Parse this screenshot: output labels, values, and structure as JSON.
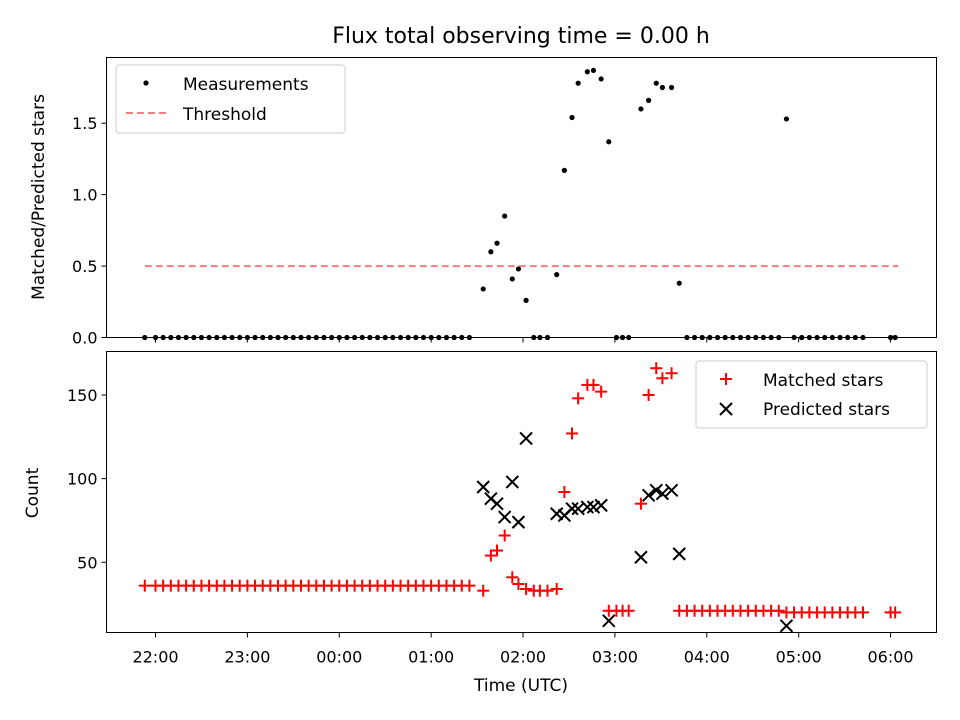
{
  "chart_data": [
    {
      "type": "scatter",
      "title": "Flux total observing time = 0.00 h",
      "xlabel": "",
      "ylabel": "Matched/Predicted stars",
      "ylim": [
        0,
        1.96
      ],
      "yticks": [
        0.0,
        0.5,
        1.0,
        1.5
      ],
      "ytick_labels": [
        "0.0",
        "0.5",
        "1.0",
        "1.5"
      ],
      "legend_position": "upper-left",
      "threshold": {
        "name": "Threshold",
        "value": 0.5,
        "x_range": [
          "21:53",
          "22:05+8h"
        ],
        "color": "#f08080"
      },
      "series": [
        {
          "name": "Measurements",
          "color": "#000000",
          "marker": "dot",
          "points": [
            [
              "21:53",
              0
            ],
            [
              "22:00",
              0
            ],
            [
              "22:05",
              0
            ],
            [
              "22:10",
              0
            ],
            [
              "22:15",
              0
            ],
            [
              "22:20",
              0
            ],
            [
              "22:25",
              0
            ],
            [
              "22:30",
              0
            ],
            [
              "22:35",
              0
            ],
            [
              "22:40",
              0
            ],
            [
              "22:45",
              0
            ],
            [
              "22:50",
              0
            ],
            [
              "22:55",
              0
            ],
            [
              "23:00",
              0
            ],
            [
              "23:05",
              0
            ],
            [
              "23:10",
              0
            ],
            [
              "23:15",
              0
            ],
            [
              "23:20",
              0
            ],
            [
              "23:25",
              0
            ],
            [
              "23:30",
              0
            ],
            [
              "23:35",
              0
            ],
            [
              "23:40",
              0
            ],
            [
              "23:45",
              0
            ],
            [
              "23:50",
              0
            ],
            [
              "23:55",
              0
            ],
            [
              "00:00",
              0
            ],
            [
              "00:05",
              0
            ],
            [
              "00:10",
              0
            ],
            [
              "00:15",
              0
            ],
            [
              "00:20",
              0
            ],
            [
              "00:25",
              0
            ],
            [
              "00:30",
              0
            ],
            [
              "00:35",
              0
            ],
            [
              "00:40",
              0
            ],
            [
              "00:45",
              0
            ],
            [
              "00:50",
              0
            ],
            [
              "00:55",
              0
            ],
            [
              "01:00",
              0
            ],
            [
              "01:05",
              0
            ],
            [
              "01:10",
              0
            ],
            [
              "01:15",
              0
            ],
            [
              "01:20",
              0
            ],
            [
              "01:25",
              0
            ],
            [
              "01:34",
              0.34
            ],
            [
              "01:39",
              0.6
            ],
            [
              "01:43",
              0.66
            ],
            [
              "01:48",
              0.85
            ],
            [
              "01:53",
              0.41
            ],
            [
              "01:57",
              0.48
            ],
            [
              "02:02",
              0.26
            ],
            [
              "02:07",
              0
            ],
            [
              "02:11",
              0
            ],
            [
              "02:16",
              0
            ],
            [
              "02:22",
              0.44
            ],
            [
              "02:27",
              1.17
            ],
            [
              "02:32",
              1.54
            ],
            [
              "02:36",
              1.78
            ],
            [
              "02:42",
              1.86
            ],
            [
              "02:46",
              1.87
            ],
            [
              "02:51",
              1.81
            ],
            [
              "02:56",
              1.37
            ],
            [
              "03:01",
              0
            ],
            [
              "03:05",
              0
            ],
            [
              "03:09",
              0
            ],
            [
              "03:17",
              1.6
            ],
            [
              "03:22",
              1.66
            ],
            [
              "03:27",
              1.78
            ],
            [
              "03:31",
              1.75
            ],
            [
              "03:37",
              1.75
            ],
            [
              "03:42",
              0.38
            ],
            [
              "03:47",
              0
            ],
            [
              "03:52",
              0
            ],
            [
              "03:57",
              0
            ],
            [
              "04:02",
              0
            ],
            [
              "04:07",
              0
            ],
            [
              "04:12",
              0
            ],
            [
              "04:17",
              0
            ],
            [
              "04:22",
              0
            ],
            [
              "04:27",
              0
            ],
            [
              "04:32",
              0
            ],
            [
              "04:37",
              0
            ],
            [
              "04:42",
              0
            ],
            [
              "04:47",
              0
            ],
            [
              "04:52",
              1.53
            ],
            [
              "04:57",
              0
            ],
            [
              "05:02",
              0
            ],
            [
              "05:07",
              0
            ],
            [
              "05:12",
              0
            ],
            [
              "05:17",
              0
            ],
            [
              "05:22",
              0
            ],
            [
              "05:27",
              0
            ],
            [
              "05:32",
              0
            ],
            [
              "05:37",
              0
            ],
            [
              "05:42",
              0
            ],
            [
              "06:00",
              0
            ],
            [
              "06:03",
              0
            ]
          ]
        }
      ]
    },
    {
      "type": "scatter",
      "title": "",
      "xlabel": "Time (UTC)",
      "ylabel": "Count",
      "ylim": [
        8,
        176
      ],
      "yticks": [
        50,
        100,
        150
      ],
      "ytick_labels": [
        "50",
        "100",
        "150"
      ],
      "xlim": [
        "21:28",
        "06:30"
      ],
      "xticks": [
        "22:00",
        "23:00",
        "00:00",
        "01:00",
        "02:00",
        "03:00",
        "04:00",
        "05:00",
        "06:00"
      ],
      "legend_position": "upper-right",
      "series": [
        {
          "name": "Matched stars",
          "color": "#ff0000",
          "marker": "plus",
          "points": [
            [
              "21:53",
              36
            ],
            [
              "22:00",
              36
            ],
            [
              "22:05",
              36
            ],
            [
              "22:10",
              36
            ],
            [
              "22:15",
              36
            ],
            [
              "22:20",
              36
            ],
            [
              "22:25",
              36
            ],
            [
              "22:30",
              36
            ],
            [
              "22:35",
              36
            ],
            [
              "22:40",
              36
            ],
            [
              "22:45",
              36
            ],
            [
              "22:50",
              36
            ],
            [
              "22:55",
              36
            ],
            [
              "23:00",
              36
            ],
            [
              "23:05",
              36
            ],
            [
              "23:10",
              36
            ],
            [
              "23:15",
              36
            ],
            [
              "23:20",
              36
            ],
            [
              "23:25",
              36
            ],
            [
              "23:30",
              36
            ],
            [
              "23:35",
              36
            ],
            [
              "23:40",
              36
            ],
            [
              "23:45",
              36
            ],
            [
              "23:50",
              36
            ],
            [
              "23:55",
              36
            ],
            [
              "00:00",
              36
            ],
            [
              "00:05",
              36
            ],
            [
              "00:10",
              36
            ],
            [
              "00:15",
              36
            ],
            [
              "00:20",
              36
            ],
            [
              "00:25",
              36
            ],
            [
              "00:30",
              36
            ],
            [
              "00:35",
              36
            ],
            [
              "00:40",
              36
            ],
            [
              "00:45",
              36
            ],
            [
              "00:50",
              36
            ],
            [
              "00:55",
              36
            ],
            [
              "01:00",
              36
            ],
            [
              "01:05",
              36
            ],
            [
              "01:10",
              36
            ],
            [
              "01:15",
              36
            ],
            [
              "01:20",
              36
            ],
            [
              "01:25",
              36
            ],
            [
              "01:34",
              33
            ],
            [
              "01:39",
              54
            ],
            [
              "01:43",
              57
            ],
            [
              "01:48",
              66
            ],
            [
              "01:53",
              41
            ],
            [
              "01:57",
              37
            ],
            [
              "02:02",
              34
            ],
            [
              "02:07",
              33
            ],
            [
              "02:11",
              33
            ],
            [
              "02:16",
              33
            ],
            [
              "02:22",
              34
            ],
            [
              "02:27",
              92
            ],
            [
              "02:32",
              127
            ],
            [
              "02:36",
              148
            ],
            [
              "02:42",
              156
            ],
            [
              "02:46",
              156
            ],
            [
              "02:51",
              152
            ],
            [
              "02:56",
              21
            ],
            [
              "03:01",
              21
            ],
            [
              "03:05",
              21
            ],
            [
              "03:09",
              21
            ],
            [
              "03:17",
              85
            ],
            [
              "03:22",
              150
            ],
            [
              "03:27",
              166
            ],
            [
              "03:31",
              160
            ],
            [
              "03:37",
              163
            ],
            [
              "03:42",
              21
            ],
            [
              "03:47",
              21
            ],
            [
              "03:52",
              21
            ],
            [
              "03:57",
              21
            ],
            [
              "04:02",
              21
            ],
            [
              "04:07",
              21
            ],
            [
              "04:12",
              21
            ],
            [
              "04:17",
              21
            ],
            [
              "04:22",
              21
            ],
            [
              "04:27",
              21
            ],
            [
              "04:32",
              21
            ],
            [
              "04:37",
              21
            ],
            [
              "04:42",
              21
            ],
            [
              "04:47",
              21
            ],
            [
              "04:52",
              20
            ],
            [
              "04:57",
              20
            ],
            [
              "05:02",
              20
            ],
            [
              "05:07",
              20
            ],
            [
              "05:12",
              20
            ],
            [
              "05:17",
              20
            ],
            [
              "05:22",
              20
            ],
            [
              "05:27",
              20
            ],
            [
              "05:32",
              20
            ],
            [
              "05:37",
              20
            ],
            [
              "05:42",
              20
            ],
            [
              "06:00",
              20
            ],
            [
              "06:03",
              20
            ]
          ]
        },
        {
          "name": "Predicted stars",
          "color": "#000000",
          "marker": "x",
          "points": [
            [
              "01:34",
              95
            ],
            [
              "01:39",
              88
            ],
            [
              "01:43",
              85
            ],
            [
              "01:48",
              77
            ],
            [
              "01:53",
              98
            ],
            [
              "01:57",
              74
            ],
            [
              "02:02",
              124
            ],
            [
              "02:22",
              79
            ],
            [
              "02:27",
              78
            ],
            [
              "02:32",
              82
            ],
            [
              "02:36",
              82
            ],
            [
              "02:42",
              83
            ],
            [
              "02:46",
              83
            ],
            [
              "02:51",
              84
            ],
            [
              "02:56",
              15
            ],
            [
              "03:17",
              53
            ],
            [
              "03:22",
              90
            ],
            [
              "03:27",
              93
            ],
            [
              "03:31",
              91
            ],
            [
              "03:37",
              93
            ],
            [
              "03:42",
              55
            ],
            [
              "04:52",
              12
            ]
          ]
        }
      ]
    }
  ]
}
